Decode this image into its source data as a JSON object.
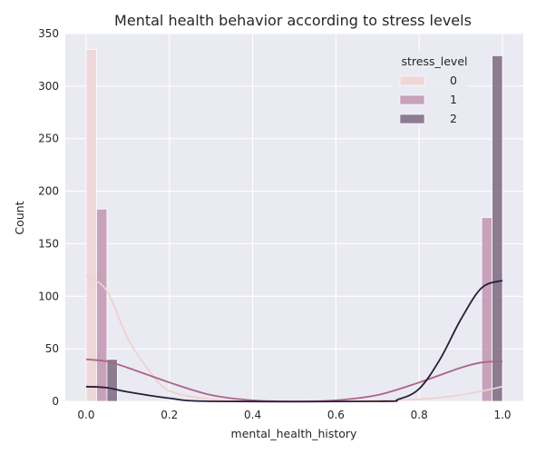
{
  "chart_data": {
    "type": "bar",
    "title": "Mental health behavior according to stress levels",
    "xlabel": "mental_health_history",
    "ylabel": "Count",
    "xlim": [
      -0.05,
      1.05
    ],
    "ylim": [
      0,
      350
    ],
    "x_ticks": [
      0.0,
      0.2,
      0.4,
      0.6,
      0.8,
      1.0
    ],
    "x_tick_labels": [
      "0.0",
      "0.2",
      "0.4",
      "0.6",
      "0.8",
      "1.0"
    ],
    "y_ticks": [
      0,
      50,
      100,
      150,
      200,
      250,
      300,
      350
    ],
    "y_tick_labels": [
      "0",
      "50",
      "100",
      "150",
      "200",
      "250",
      "300",
      "350"
    ],
    "grid": true,
    "legend": {
      "title": "stress_level",
      "position": "top-right"
    },
    "series": [
      {
        "name": "0",
        "color": "#efd3d3",
        "line_color": "#efd1cf",
        "bars": [
          {
            "x": 0.0,
            "value": 335
          },
          {
            "x": 1.0,
            "value": 0
          }
        ],
        "kde": [
          [
            0.0,
            120
          ],
          [
            0.05,
            105
          ],
          [
            0.1,
            60
          ],
          [
            0.15,
            30
          ],
          [
            0.2,
            10
          ],
          [
            0.3,
            2
          ],
          [
            0.4,
            0
          ],
          [
            0.6,
            0
          ],
          [
            0.7,
            1
          ],
          [
            0.8,
            2
          ],
          [
            0.9,
            6
          ],
          [
            1.0,
            14
          ]
        ]
      },
      {
        "name": "1",
        "color": "#c294b0",
        "line_color": "#aa6586",
        "bars": [
          {
            "x": 0.0,
            "value": 183
          },
          {
            "x": 1.0,
            "value": 175
          }
        ],
        "kde": [
          [
            0.0,
            40
          ],
          [
            0.05,
            38
          ],
          [
            0.1,
            32
          ],
          [
            0.2,
            18
          ],
          [
            0.3,
            6
          ],
          [
            0.4,
            1
          ],
          [
            0.5,
            0
          ],
          [
            0.6,
            1
          ],
          [
            0.7,
            6
          ],
          [
            0.8,
            18
          ],
          [
            0.9,
            32
          ],
          [
            0.95,
            37
          ],
          [
            1.0,
            38
          ]
        ]
      },
      {
        "name": "2",
        "color": "#7c6781",
        "line_color": "#2b1d39",
        "bars": [
          {
            "x": 0.0,
            "value": 40
          },
          {
            "x": 1.0,
            "value": 329
          }
        ],
        "kde": [
          [
            0.0,
            14
          ],
          [
            0.05,
            13
          ],
          [
            0.1,
            9
          ],
          [
            0.2,
            3
          ],
          [
            0.3,
            0
          ],
          [
            0.7,
            0
          ],
          [
            0.75,
            2
          ],
          [
            0.8,
            12
          ],
          [
            0.85,
            40
          ],
          [
            0.9,
            78
          ],
          [
            0.95,
            108
          ],
          [
            1.0,
            115
          ]
        ]
      }
    ]
  }
}
